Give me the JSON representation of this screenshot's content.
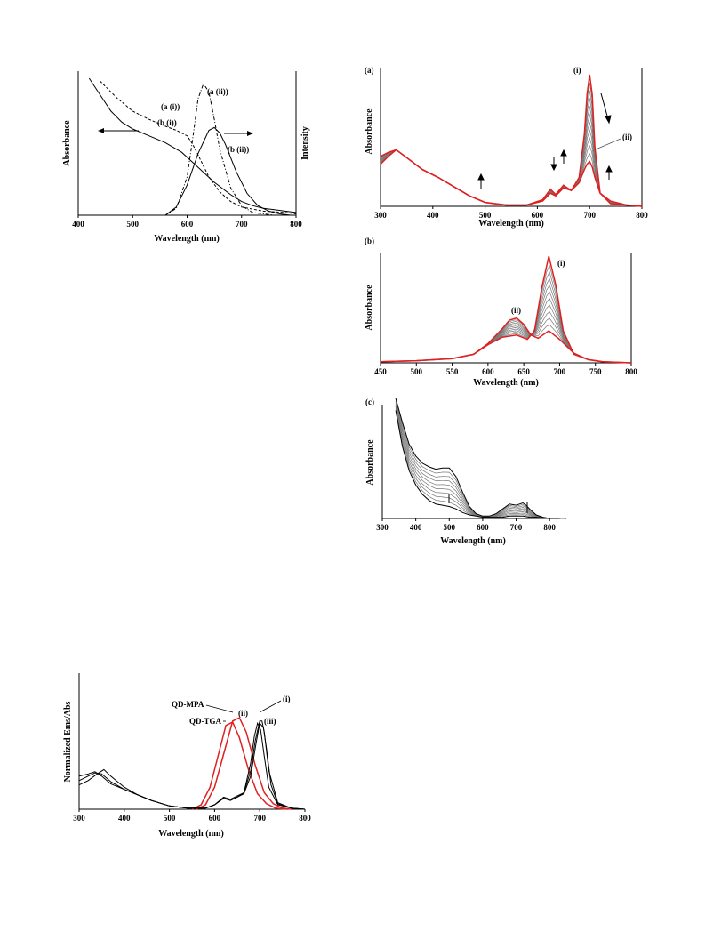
{
  "chart_data": [
    {
      "type": "line",
      "panel": "",
      "xlabel": "Wavelength (nm)",
      "ylabel": "Absorbance",
      "ylabel_right": "Intensity",
      "xlim": [
        400,
        800
      ],
      "ylim": [
        0,
        1
      ],
      "xticks": [
        "400",
        "500",
        "600",
        "700",
        "800"
      ],
      "annotations": [
        "(a (i))",
        "(a (ii))",
        "(b (i))",
        "(b (ii))"
      ],
      "series": [
        {
          "name": "(a (i))",
          "style": "dashed",
          "x": [
            440,
            470,
            500,
            530,
            560,
            580,
            600,
            610,
            620,
            630,
            640,
            660,
            680,
            700,
            740,
            780,
            800
          ],
          "y": [
            0.98,
            0.86,
            0.76,
            0.7,
            0.65,
            0.62,
            0.58,
            0.52,
            0.44,
            0.36,
            0.28,
            0.17,
            0.1,
            0.06,
            0.03,
            0.02,
            0.01
          ]
        },
        {
          "name": "(b (i))",
          "style": "solid",
          "x": [
            420,
            440,
            460,
            480,
            500,
            530,
            560,
            590,
            620,
            650,
            680,
            700,
            720,
            740,
            760,
            780,
            800
          ],
          "y": [
            1.0,
            0.88,
            0.76,
            0.68,
            0.63,
            0.58,
            0.53,
            0.46,
            0.35,
            0.24,
            0.15,
            0.1,
            0.07,
            0.05,
            0.04,
            0.03,
            0.02
          ]
        },
        {
          "name": "(a (ii))",
          "style": "dash-dot",
          "x": [
            560,
            580,
            600,
            610,
            620,
            630,
            640,
            650,
            660,
            680,
            700,
            720,
            740,
            760
          ],
          "y": [
            0.0,
            0.05,
            0.28,
            0.55,
            0.85,
            0.96,
            0.9,
            0.7,
            0.48,
            0.2,
            0.07,
            0.02,
            0.01,
            0.0
          ]
        },
        {
          "name": "(b (ii))",
          "style": "solid",
          "x": [
            560,
            580,
            600,
            620,
            640,
            650,
            660,
            670,
            690,
            710,
            730,
            750,
            770,
            790
          ],
          "y": [
            0.0,
            0.06,
            0.22,
            0.45,
            0.62,
            0.64,
            0.6,
            0.52,
            0.32,
            0.16,
            0.07,
            0.03,
            0.01,
            0.0
          ]
        }
      ]
    },
    {
      "type": "line",
      "panel": "(a)",
      "xlabel": "Wavelength (nm)",
      "ylabel": "Absorbance",
      "xlim": [
        300,
        800
      ],
      "ylim": [
        0,
        1
      ],
      "xticks": [
        "300",
        "400",
        "500",
        "600",
        "700",
        "800"
      ],
      "annotations": [
        "(i)",
        "(ii)"
      ],
      "series": [
        {
          "name": "(i)",
          "color": "#e02020",
          "x": [
            300,
            315,
            330,
            350,
            380,
            410,
            440,
            470,
            500,
            540,
            580,
            610,
            625,
            635,
            650,
            665,
            680,
            690,
            695,
            700,
            705,
            710,
            720,
            740,
            770,
            800
          ],
          "y": [
            0.38,
            0.41,
            0.43,
            0.37,
            0.28,
            0.22,
            0.15,
            0.08,
            0.03,
            0.01,
            0.01,
            0.05,
            0.13,
            0.09,
            0.16,
            0.12,
            0.22,
            0.55,
            0.85,
            1.0,
            0.85,
            0.45,
            0.1,
            0.02,
            0.01,
            0.0
          ]
        },
        {
          "name": "(ii)",
          "color": "#e02020",
          "x": [
            300,
            315,
            330,
            350,
            380,
            410,
            440,
            470,
            500,
            540,
            580,
            610,
            625,
            635,
            650,
            665,
            680,
            690,
            695,
            700,
            705,
            710,
            720,
            740,
            770,
            800
          ],
          "y": [
            0.32,
            0.38,
            0.43,
            0.37,
            0.28,
            0.22,
            0.15,
            0.08,
            0.03,
            0.01,
            0.01,
            0.04,
            0.1,
            0.08,
            0.14,
            0.12,
            0.18,
            0.28,
            0.32,
            0.34,
            0.3,
            0.22,
            0.1,
            0.04,
            0.01,
            0.0
          ]
        }
      ],
      "intermediate_traces": 10
    },
    {
      "type": "line",
      "panel": "(b)",
      "xlabel": "Wavelength (nm)",
      "ylabel": "Absorbance",
      "xlim": [
        450,
        800
      ],
      "ylim": [
        0,
        1
      ],
      "xticks": [
        "450",
        "500",
        "550",
        "600",
        "650",
        "700",
        "750",
        "800"
      ],
      "annotations": [
        "(i)",
        "(ii)"
      ],
      "series": [
        {
          "name": "(i)",
          "color": "#e02020",
          "x": [
            450,
            500,
            550,
            580,
            600,
            620,
            640,
            655,
            665,
            675,
            685,
            695,
            705,
            720,
            740,
            760,
            800
          ],
          "y": [
            0.01,
            0.02,
            0.04,
            0.08,
            0.17,
            0.24,
            0.26,
            0.22,
            0.3,
            0.7,
            1.0,
            0.72,
            0.3,
            0.08,
            0.03,
            0.01,
            0.0
          ]
        },
        {
          "name": "(ii)",
          "color": "#e02020",
          "x": [
            450,
            500,
            550,
            580,
            600,
            620,
            630,
            640,
            650,
            660,
            670,
            685,
            700,
            720,
            740,
            760,
            800
          ],
          "y": [
            0.01,
            0.02,
            0.04,
            0.08,
            0.18,
            0.32,
            0.4,
            0.42,
            0.36,
            0.26,
            0.23,
            0.3,
            0.22,
            0.09,
            0.03,
            0.01,
            0.0
          ]
        }
      ],
      "intermediate_traces": 10
    },
    {
      "type": "line",
      "panel": "(c)",
      "xlabel": "Wavelength (nm)",
      "ylabel": "Absorbance",
      "xlim": [
        300,
        850
      ],
      "ylim": [
        0,
        1
      ],
      "xticks": [
        "300",
        "400",
        "500",
        "600",
        "700",
        "800"
      ],
      "series": [
        {
          "name": "",
          "color": "#000000",
          "x": [
            340,
            360,
            380,
            400,
            420,
            440,
            460,
            480,
            500,
            520,
            540,
            560,
            580,
            600,
            620,
            640,
            660,
            680,
            700,
            710,
            720,
            730,
            740,
            760,
            780,
            800,
            830
          ],
          "y": [
            1.0,
            0.8,
            0.62,
            0.52,
            0.46,
            0.43,
            0.41,
            0.42,
            0.42,
            0.35,
            0.22,
            0.1,
            0.04,
            0.02,
            0.02,
            0.04,
            0.08,
            0.12,
            0.11,
            0.12,
            0.13,
            0.11,
            0.08,
            0.03,
            0.01,
            0.0,
            0.0
          ]
        },
        {
          "name": "",
          "color": "#000000",
          "x": [
            340,
            360,
            380,
            400,
            420,
            440,
            460,
            480,
            500,
            520,
            540,
            560,
            580,
            600,
            620,
            640,
            660,
            680,
            700,
            720,
            740,
            760,
            800,
            830
          ],
          "y": [
            0.9,
            0.6,
            0.4,
            0.28,
            0.2,
            0.15,
            0.12,
            0.11,
            0.1,
            0.08,
            0.05,
            0.03,
            0.02,
            0.01,
            0.01,
            0.01,
            0.01,
            0.02,
            0.02,
            0.02,
            0.01,
            0.01,
            0.0,
            0.0
          ]
        }
      ],
      "intermediate_traces": 8
    },
    {
      "type": "line",
      "panel": "",
      "xlabel": "Wavelength (nm)",
      "ylabel": "Normalized Ems/Abs",
      "xlim": [
        300,
        800
      ],
      "ylim": [
        0,
        1
      ],
      "xticks": [
        "300",
        "400",
        "500",
        "600",
        "700",
        "800"
      ],
      "annotations": [
        "QD-MPA",
        "QD-TGA",
        "(i)",
        "(ii)",
        "(iii)"
      ],
      "series": [
        {
          "name": "QD-MPA",
          "color": "#e02020",
          "x": [
            560,
            580,
            600,
            620,
            640,
            655,
            670,
            690,
            710,
            730,
            750,
            770
          ],
          "y": [
            0.0,
            0.04,
            0.2,
            0.5,
            0.8,
            0.83,
            0.7,
            0.4,
            0.15,
            0.05,
            0.01,
            0.0
          ]
        },
        {
          "name": "QD-TGA",
          "color": "#e02020",
          "x": [
            550,
            570,
            590,
            610,
            625,
            640,
            655,
            675,
            695,
            715,
            735,
            760
          ],
          "y": [
            0.0,
            0.04,
            0.2,
            0.52,
            0.76,
            0.79,
            0.65,
            0.36,
            0.14,
            0.05,
            0.01,
            0.0
          ]
        },
        {
          "name": "(i)",
          "color": "#000000",
          "x": [
            300,
            320,
            335,
            350,
            370,
            400,
            430,
            460,
            500,
            540,
            580,
            600,
            620,
            635,
            650,
            665,
            680,
            690,
            700,
            705,
            710,
            720,
            740,
            770,
            800
          ],
          "y": [
            0.3,
            0.32,
            0.34,
            0.3,
            0.23,
            0.18,
            0.13,
            0.08,
            0.03,
            0.01,
            0.01,
            0.04,
            0.11,
            0.09,
            0.12,
            0.15,
            0.35,
            0.62,
            0.8,
            0.8,
            0.7,
            0.35,
            0.06,
            0.01,
            0.0
          ]
        },
        {
          "name": "(ii)",
          "color": "#000000",
          "x": [
            300,
            320,
            335,
            350,
            370,
            400,
            430,
            460,
            500,
            540,
            580,
            600,
            620,
            635,
            650,
            665,
            680,
            688,
            695,
            702,
            710,
            720,
            740,
            770,
            800
          ],
          "y": [
            0.26,
            0.3,
            0.33,
            0.32,
            0.25,
            0.18,
            0.13,
            0.08,
            0.03,
            0.01,
            0.01,
            0.04,
            0.1,
            0.08,
            0.11,
            0.15,
            0.42,
            0.66,
            0.78,
            0.72,
            0.48,
            0.2,
            0.04,
            0.01,
            0.0
          ]
        },
        {
          "name": "(iii)",
          "color": "#000000",
          "x": [
            300,
            320,
            340,
            355,
            370,
            400,
            430,
            460,
            500,
            540,
            580,
            600,
            620,
            635,
            650,
            665,
            680,
            692,
            700,
            708,
            715,
            725,
            740,
            770,
            800
          ],
          "y": [
            0.22,
            0.26,
            0.32,
            0.36,
            0.3,
            0.2,
            0.13,
            0.08,
            0.03,
            0.01,
            0.01,
            0.04,
            0.1,
            0.08,
            0.11,
            0.14,
            0.3,
            0.6,
            0.78,
            0.74,
            0.55,
            0.22,
            0.05,
            0.01,
            0.0
          ]
        }
      ]
    }
  ]
}
